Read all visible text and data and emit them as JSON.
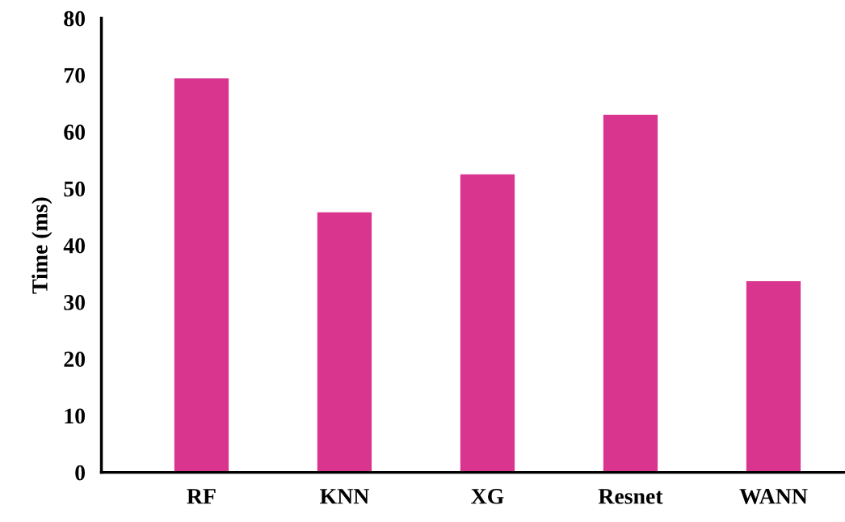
{
  "chart_data": {
    "type": "bar",
    "ylabel": "Time (ms)",
    "categories": [
      "RF",
      "KNN",
      "XG",
      "Resnet",
      "WANN"
    ],
    "values": [
      69.4,
      45.8,
      52.5,
      63.0,
      33.7
    ],
    "color": "#d9358f",
    "ylim": [
      0,
      80
    ],
    "yticks": [
      0,
      10,
      20,
      30,
      40,
      50,
      60,
      70,
      80
    ],
    "grid": false
  }
}
